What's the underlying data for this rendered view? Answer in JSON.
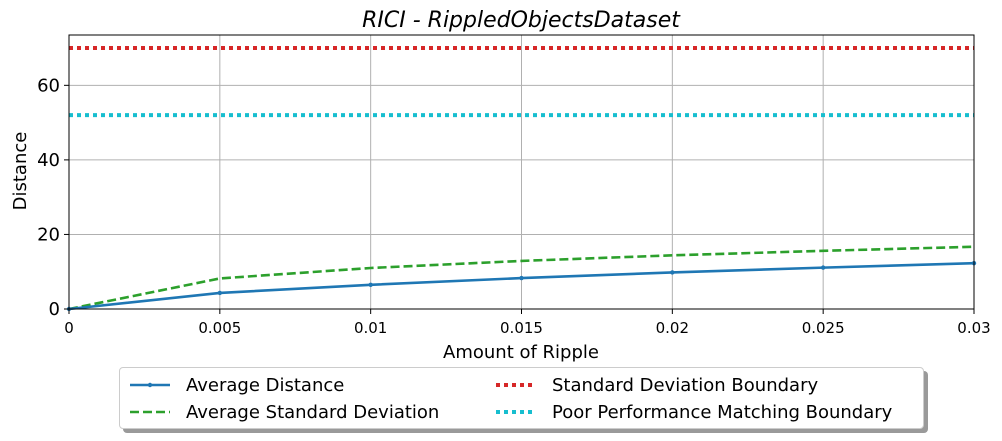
{
  "chart_data": {
    "type": "line",
    "title": "RICI - RippledObjectsDataset",
    "xlabel": "Amount of Ripple",
    "ylabel": "Distance",
    "xlim": [
      0,
      0.03
    ],
    "ylim": [
      0,
      73.5
    ],
    "grid": true,
    "x_ticks": [
      "0",
      "0.005",
      "0.01",
      "0.015",
      "0.02",
      "0.025",
      "0.03"
    ],
    "y_ticks": [
      "0",
      "20",
      "40",
      "60"
    ],
    "x": [
      0,
      0.005,
      0.01,
      0.015,
      0.02,
      0.025,
      0.03
    ],
    "series": [
      {
        "name": "Average Distance",
        "color": "#1f77b4",
        "style": "solid-marker",
        "values": [
          0,
          4.3,
          6.5,
          8.3,
          9.8,
          11.1,
          12.3
        ]
      },
      {
        "name": "Average Standard Deviation",
        "color": "#2ca02c",
        "style": "dashed",
        "values": [
          0,
          8.2,
          11.0,
          12.9,
          14.4,
          15.6,
          16.7
        ]
      },
      {
        "name": "Standard Deviation Boundary",
        "color": "#d62728",
        "style": "dotted",
        "values": [
          70,
          70,
          70,
          70,
          70,
          70,
          70
        ]
      },
      {
        "name": "Poor Performance Matching Boundary",
        "color": "#17becf",
        "style": "dotted",
        "values": [
          52,
          52,
          52,
          52,
          52,
          52,
          52
        ]
      }
    ],
    "legend_position": "bottom-center"
  }
}
